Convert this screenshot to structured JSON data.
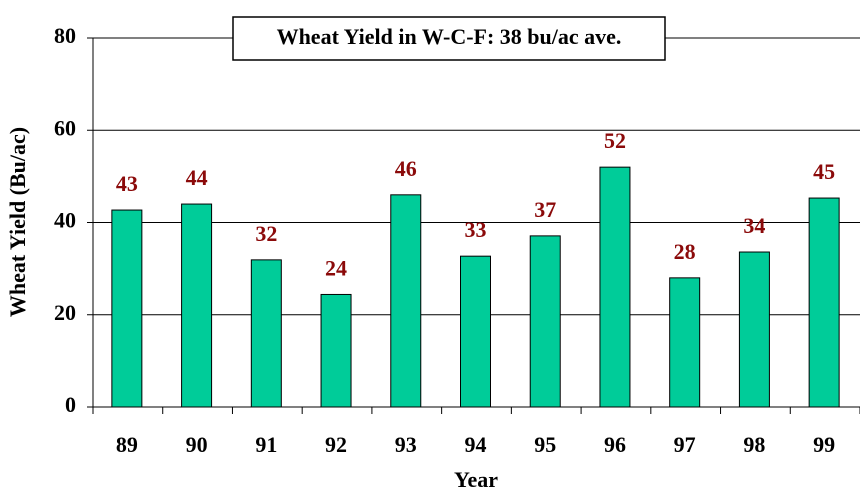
{
  "chart_data": {
    "type": "bar",
    "title": "Wheat Yield in W-C-F: 38 bu/ac ave.",
    "x_label": "Year",
    "y_label": "Wheat Yield (Bu/ac)",
    "categories": [
      "89",
      "90",
      "91",
      "92",
      "93",
      "94",
      "95",
      "96",
      "97",
      "98",
      "99"
    ],
    "values": [
      42.7,
      44,
      31.9,
      24.4,
      46,
      32.7,
      37.1,
      52,
      28,
      33.6,
      45.3
    ],
    "value_labels": [
      "43",
      "44",
      "32",
      "24",
      "46",
      "33",
      "37",
      "52",
      "28",
      "34",
      "45"
    ],
    "color": "#00cc99",
    "ylim": [
      0,
      80
    ],
    "yticks": [
      0,
      20,
      40,
      60,
      80
    ],
    "grid": true
  }
}
